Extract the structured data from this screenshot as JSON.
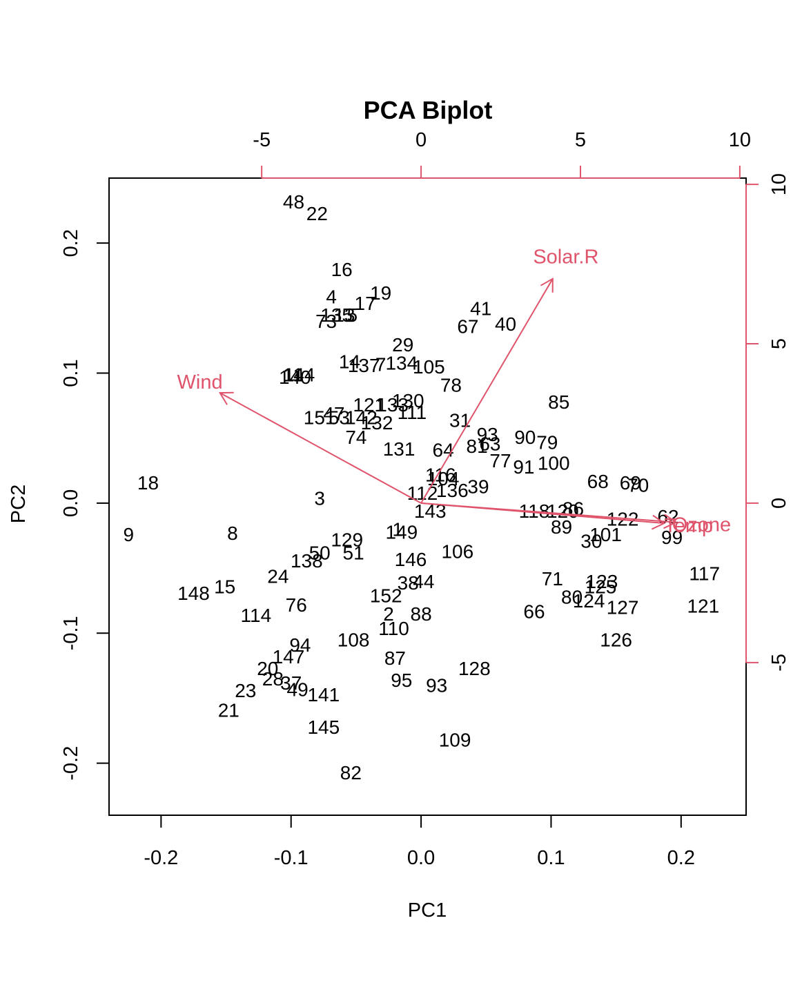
{
  "chart_data": {
    "type": "scatter",
    "title": "PCA Biplot",
    "xlabel": "PC1",
    "ylabel": "PC2",
    "xlim": [
      -0.24,
      0.25
    ],
    "ylim": [
      -0.24,
      0.25
    ],
    "xticks": [
      -0.2,
      -0.1,
      0.0,
      0.1,
      0.2
    ],
    "yticks": [
      -0.2,
      -0.1,
      0.0,
      0.1,
      0.2
    ],
    "xtick_labels": [
      "-0.2",
      "-0.1",
      "0.0",
      "0.1",
      "0.2"
    ],
    "ytick_labels": [
      "-0.2",
      "-0.1",
      "0.0",
      "0.1",
      "0.2"
    ],
    "var_axis_ticks": [
      -5,
      0,
      5,
      10
    ],
    "var_xtick_labels": [
      "-5",
      "0",
      "5",
      "10"
    ],
    "var_ytick_labels": [
      "-5",
      "0",
      "5",
      "10"
    ],
    "var_color": "#DF536B",
    "variables": [
      {
        "name": "Wind",
        "x": -6.31,
        "y": 3.46
      },
      {
        "name": "Solar.R",
        "x": 4.13,
        "y": 7.04
      },
      {
        "name": "Temp",
        "x": 7.63,
        "y": -0.63
      },
      {
        "name": "Ozone",
        "x": 8.0,
        "y": -0.6
      }
    ],
    "points": [
      {
        "label": "48",
        "x": -0.098,
        "y": 0.232
      },
      {
        "label": "22",
        "x": -0.08,
        "y": 0.223
      },
      {
        "label": "16",
        "x": -0.061,
        "y": 0.18
      },
      {
        "label": "19",
        "x": -0.031,
        "y": 0.162
      },
      {
        "label": "4",
        "x": -0.069,
        "y": 0.159
      },
      {
        "label": "17",
        "x": -0.043,
        "y": 0.154
      },
      {
        "label": "135",
        "x": -0.065,
        "y": 0.145
      },
      {
        "label": "13",
        "x": -0.059,
        "y": 0.145
      },
      {
        "label": "5",
        "x": -0.053,
        "y": 0.145
      },
      {
        "label": "73",
        "x": -0.073,
        "y": 0.14
      },
      {
        "label": "41",
        "x": 0.046,
        "y": 0.15
      },
      {
        "label": "67",
        "x": 0.036,
        "y": 0.136
      },
      {
        "label": "40",
        "x": 0.065,
        "y": 0.138
      },
      {
        "label": "29",
        "x": -0.014,
        "y": 0.122
      },
      {
        "label": "14",
        "x": -0.055,
        "y": 0.109
      },
      {
        "label": "137",
        "x": -0.044,
        "y": 0.106
      },
      {
        "label": "7",
        "x": -0.031,
        "y": 0.107
      },
      {
        "label": "134",
        "x": -0.015,
        "y": 0.108
      },
      {
        "label": "105",
        "x": 0.006,
        "y": 0.105
      },
      {
        "label": "78",
        "x": 0.023,
        "y": 0.091
      },
      {
        "label": "11",
        "x": -0.098,
        "y": 0.099
      },
      {
        "label": "144",
        "x": -0.094,
        "y": 0.099
      },
      {
        "label": "140",
        "x": -0.097,
        "y": 0.097
      },
      {
        "label": "85",
        "x": 0.106,
        "y": 0.078
      },
      {
        "label": "121",
        "x": -0.04,
        "y": 0.076
      },
      {
        "label": "133",
        "x": -0.022,
        "y": 0.076
      },
      {
        "label": "130",
        "x": -0.01,
        "y": 0.079
      },
      {
        "label": "111",
        "x": -0.007,
        "y": 0.07
      },
      {
        "label": "47",
        "x": -0.067,
        "y": 0.069
      },
      {
        "label": "151",
        "x": -0.078,
        "y": 0.066
      },
      {
        "label": "53",
        "x": -0.063,
        "y": 0.066
      },
      {
        "label": "142",
        "x": -0.046,
        "y": 0.066
      },
      {
        "label": "132",
        "x": -0.034,
        "y": 0.062
      },
      {
        "label": "31",
        "x": 0.03,
        "y": 0.064
      },
      {
        "label": "74",
        "x": -0.05,
        "y": 0.051
      },
      {
        "label": "93",
        "x": 0.051,
        "y": 0.053
      },
      {
        "label": "90",
        "x": 0.08,
        "y": 0.051
      },
      {
        "label": "79",
        "x": 0.097,
        "y": 0.047
      },
      {
        "label": "81",
        "x": 0.043,
        "y": 0.044
      },
      {
        "label": "63",
        "x": 0.053,
        "y": 0.046
      },
      {
        "label": "131",
        "x": -0.017,
        "y": 0.042
      },
      {
        "label": "64",
        "x": 0.017,
        "y": 0.041
      },
      {
        "label": "77",
        "x": 0.061,
        "y": 0.033
      },
      {
        "label": "91",
        "x": 0.079,
        "y": 0.028
      },
      {
        "label": "100",
        "x": 0.102,
        "y": 0.031
      },
      {
        "label": "116",
        "x": 0.015,
        "y": 0.022
      },
      {
        "label": "104",
        "x": 0.017,
        "y": 0.019
      },
      {
        "label": "136",
        "x": 0.024,
        "y": 0.01
      },
      {
        "label": "39",
        "x": 0.044,
        "y": 0.013
      },
      {
        "label": "68",
        "x": 0.136,
        "y": 0.017
      },
      {
        "label": "69",
        "x": 0.161,
        "y": 0.016
      },
      {
        "label": "70",
        "x": 0.167,
        "y": 0.014
      },
      {
        "label": "18",
        "x": -0.21,
        "y": 0.016
      },
      {
        "label": "3",
        "x": -0.078,
        "y": 0.004
      },
      {
        "label": "112",
        "x": 0.001,
        "y": 0.008
      },
      {
        "label": "143",
        "x": 0.007,
        "y": -0.006
      },
      {
        "label": "118",
        "x": 0.087,
        "y": -0.006
      },
      {
        "label": "120",
        "x": 0.109,
        "y": -0.006
      },
      {
        "label": "86",
        "x": 0.117,
        "y": -0.004
      },
      {
        "label": "122",
        "x": 0.155,
        "y": -0.012
      },
      {
        "label": "62",
        "x": 0.19,
        "y": -0.01
      },
      {
        "label": "89",
        "x": 0.108,
        "y": -0.018
      },
      {
        "label": "101",
        "x": 0.142,
        "y": -0.024
      },
      {
        "label": "30",
        "x": 0.131,
        "y": -0.029
      },
      {
        "label": "99",
        "x": 0.193,
        "y": -0.026
      },
      {
        "label": "9",
        "x": -0.225,
        "y": -0.024
      },
      {
        "label": "8",
        "x": -0.145,
        "y": -0.023
      },
      {
        "label": "1",
        "x": -0.018,
        "y": -0.02
      },
      {
        "label": "149",
        "x": -0.015,
        "y": -0.022
      },
      {
        "label": "129",
        "x": -0.057,
        "y": -0.028
      },
      {
        "label": "50",
        "x": -0.078,
        "y": -0.038
      },
      {
        "label": "51",
        "x": -0.052,
        "y": -0.038
      },
      {
        "label": "138",
        "x": -0.088,
        "y": -0.044
      },
      {
        "label": "146",
        "x": -0.008,
        "y": -0.043
      },
      {
        "label": "106",
        "x": 0.028,
        "y": -0.037
      },
      {
        "label": "24",
        "x": -0.11,
        "y": -0.056
      },
      {
        "label": "38",
        "x": -0.01,
        "y": -0.061
      },
      {
        "label": "44",
        "x": 0.002,
        "y": -0.06
      },
      {
        "label": "71",
        "x": 0.101,
        "y": -0.058
      },
      {
        "label": "123",
        "x": 0.139,
        "y": -0.06
      },
      {
        "label": "125",
        "x": 0.138,
        "y": -0.064
      },
      {
        "label": "117",
        "x": 0.218,
        "y": -0.054
      },
      {
        "label": "148",
        "x": -0.175,
        "y": -0.069
      },
      {
        "label": "15",
        "x": -0.151,
        "y": -0.064
      },
      {
        "label": "152",
        "x": -0.027,
        "y": -0.071
      },
      {
        "label": "80",
        "x": 0.116,
        "y": -0.072
      },
      {
        "label": "124",
        "x": 0.129,
        "y": -0.075
      },
      {
        "label": "127",
        "x": 0.155,
        "y": -0.08
      },
      {
        "label": "121",
        "x": 0.217,
        "y": -0.079
      },
      {
        "label": "76",
        "x": -0.096,
        "y": -0.078
      },
      {
        "label": "66",
        "x": 0.087,
        "y": -0.083
      },
      {
        "label": "114",
        "x": -0.127,
        "y": -0.086
      },
      {
        "label": "2",
        "x": -0.025,
        "y": -0.085
      },
      {
        "label": "88",
        "x": 0.0,
        "y": -0.085
      },
      {
        "label": "110",
        "x": -0.021,
        "y": -0.096
      },
      {
        "label": "108",
        "x": -0.052,
        "y": -0.105
      },
      {
        "label": "126",
        "x": 0.15,
        "y": -0.105
      },
      {
        "label": "94",
        "x": -0.093,
        "y": -0.109
      },
      {
        "label": "147",
        "x": -0.102,
        "y": -0.118
      },
      {
        "label": "87",
        "x": -0.02,
        "y": -0.119
      },
      {
        "label": "128",
        "x": 0.041,
        "y": -0.127
      },
      {
        "label": "20",
        "x": -0.118,
        "y": -0.127
      },
      {
        "label": "28",
        "x": -0.114,
        "y": -0.135
      },
      {
        "label": "37",
        "x": -0.1,
        "y": -0.138
      },
      {
        "label": "95",
        "x": -0.015,
        "y": -0.136
      },
      {
        "label": "93",
        "x": 0.012,
        "y": -0.14
      },
      {
        "label": "23",
        "x": -0.135,
        "y": -0.144
      },
      {
        "label": "49",
        "x": -0.095,
        "y": -0.143
      },
      {
        "label": "141",
        "x": -0.075,
        "y": -0.147
      },
      {
        "label": "21",
        "x": -0.148,
        "y": -0.159
      },
      {
        "label": "145",
        "x": -0.075,
        "y": -0.172
      },
      {
        "label": "109",
        "x": 0.026,
        "y": -0.182
      },
      {
        "label": "82",
        "x": -0.054,
        "y": -0.207
      }
    ]
  }
}
